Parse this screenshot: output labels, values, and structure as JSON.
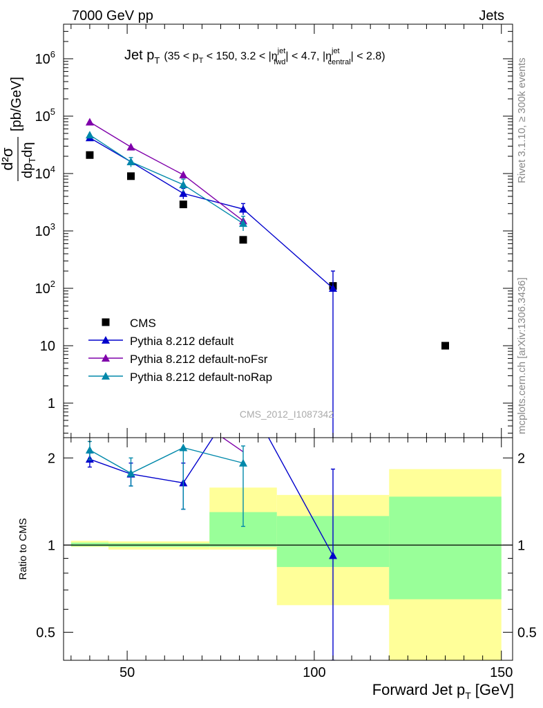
{
  "header": {
    "left": "7000 GeV pp",
    "right": "Jets"
  },
  "side_labels": {
    "rivet": "Rivet 3.1.10, ≥ 300k events",
    "mcplots": "mcplots.cern.ch [arXiv:1306.3436]"
  },
  "watermark": "CMS_2012_I1087342",
  "main_plot": {
    "title_main": "Jet p",
    "title_sub": "T",
    "title_cut": "(35 < p",
    "title_cut_sub": "T",
    "title_cut2": " < 150, 3.2 < |η",
    "title_eta_sup1": "jet",
    "title_eta_sub1": "fwd",
    "title_cut3": "| < 4.7, |η",
    "title_eta_sup2": "jet",
    "title_eta_sub2": "central",
    "title_cut4": "| < 2.8)",
    "ylabel_num": "d²σ",
    "ylabel_den": "dp",
    "ylabel_den_sub": "T",
    "ylabel_den2": "dη",
    "ylabel_unit": "[pb/GeV]"
  },
  "ratio_plot": {
    "ylabel": "Ratio to CMS"
  },
  "xaxis": {
    "label": "Forward Jet p",
    "label_sub": "T",
    "label_unit": "[GeV]"
  },
  "legend": [
    {
      "name": "CMS",
      "color": "#000000",
      "marker": "square"
    },
    {
      "name": "Pythia 8.212 default",
      "color": "#0000cc",
      "marker": "triangle"
    },
    {
      "name": "Pythia 8.212 default-noFsr",
      "color": "#7f00aa",
      "marker": "triangle"
    },
    {
      "name": "Pythia 8.212 default-noRap",
      "color": "#0088aa",
      "marker": "triangle"
    }
  ],
  "chart_data": [
    {
      "type": "scatter",
      "panel": "main",
      "xlim": [
        33,
        153
      ],
      "ylim": [
        0.25,
        4000000
      ],
      "log_y": true,
      "yticks": [
        {
          "value": 1,
          "label": "1"
        },
        {
          "value": 10,
          "label": "10"
        },
        {
          "value": 100,
          "label": "10",
          "exp": "2"
        },
        {
          "value": 1000,
          "label": "10",
          "exp": "3"
        },
        {
          "value": 10000,
          "label": "10",
          "exp": "4"
        },
        {
          "value": 100000,
          "label": "10",
          "exp": "5"
        },
        {
          "value": 1000000,
          "label": "10",
          "exp": "6"
        }
      ],
      "series": [
        {
          "name": "CMS",
          "color": "#000000",
          "marker": "square",
          "line": false,
          "x": [
            40,
            51,
            65,
            81,
            105,
            135
          ],
          "y": [
            21000,
            9000,
            2900,
            700,
            110,
            10
          ]
        },
        {
          "name": "Pythia 8.212 default",
          "color": "#0000cc",
          "marker": "triangle",
          "line": true,
          "x": [
            40,
            51,
            65,
            81,
            105
          ],
          "y": [
            42000,
            16000,
            4500,
            2400,
            100
          ],
          "err_low": [
            null,
            null,
            3600,
            1900,
            0.2
          ],
          "err_high": [
            null,
            null,
            5500,
            3000,
            200
          ]
        },
        {
          "name": "Pythia 8.212 default-noFsr",
          "color": "#7f00aa",
          "marker": "triangle",
          "line": true,
          "x": [
            40,
            51,
            65,
            81
          ],
          "y": [
            79000,
            29000,
            9500,
            1500
          ]
        },
        {
          "name": "Pythia 8.212 default-noRap",
          "color": "#0088aa",
          "marker": "triangle",
          "line": true,
          "x": [
            40,
            51,
            65,
            81
          ],
          "y": [
            47000,
            16000,
            6400,
            1350
          ],
          "err_low": [
            null,
            13000,
            4800,
            1000
          ],
          "err_high": [
            null,
            19000,
            8000,
            1800
          ]
        }
      ]
    },
    {
      "type": "line",
      "panel": "ratio",
      "xlim": [
        33,
        153
      ],
      "ylim": [
        0.4,
        2.35
      ],
      "log_y": true,
      "yticks": [
        {
          "value": 0.5,
          "label": "0.5"
        },
        {
          "value": 1,
          "label": "1"
        },
        {
          "value": 2,
          "label": "2"
        }
      ],
      "xticks": [
        {
          "value": 50,
          "label": "50"
        },
        {
          "value": 100,
          "label": "100"
        },
        {
          "value": 150,
          "label": "150"
        }
      ],
      "bands": {
        "yellow": [
          {
            "x0": 35,
            "x1": 45,
            "lo": 0.985,
            "hi": 1.035
          },
          {
            "x0": 45,
            "x1": 72,
            "lo": 0.965,
            "hi": 1.03
          },
          {
            "x0": 72,
            "x1": 90,
            "lo": 0.965,
            "hi": 1.58
          },
          {
            "x0": 90,
            "x1": 120,
            "lo": 0.62,
            "hi": 1.49
          },
          {
            "x0": 120,
            "x1": 150,
            "lo": 0.36,
            "hi": 1.83
          }
        ],
        "green": [
          {
            "x0": 35,
            "x1": 45,
            "lo": 0.99,
            "hi": 1.02
          },
          {
            "x0": 45,
            "x1": 72,
            "lo": 0.985,
            "hi": 1.015
          },
          {
            "x0": 72,
            "x1": 90,
            "lo": 0.985,
            "hi": 1.3
          },
          {
            "x0": 90,
            "x1": 120,
            "lo": 0.84,
            "hi": 1.26
          },
          {
            "x0": 120,
            "x1": 150,
            "lo": 0.65,
            "hi": 1.47
          }
        ]
      },
      "series": [
        {
          "name": "Pythia 8.212 default",
          "color": "#0000cc",
          "x": [
            40,
            51,
            65,
            81,
            105
          ],
          "y": [
            1.98,
            1.76,
            1.64,
            3.4,
            0.92
          ],
          "err_low": [
            1.86,
            1.6,
            1.33,
            null,
            0.001
          ],
          "err_high": [
            2.08,
            1.92,
            1.92,
            null,
            1.83
          ]
        },
        {
          "name": "Pythia 8.212 default-noFsr",
          "color": "#7f00aa",
          "x": [
            73.5,
            81
          ],
          "y": [
            2.45,
            2.1
          ]
        },
        {
          "name": "Pythia 8.212 default-noRap",
          "color": "#0088aa",
          "x": [
            40,
            51,
            65,
            81
          ],
          "y": [
            2.13,
            1.77,
            2.17,
            1.92
          ],
          "err_low": [
            1.97,
            1.6,
            1.33,
            1.16
          ],
          "err_high": [
            2.28,
            2.0,
            2.17,
            2.2
          ]
        }
      ]
    }
  ]
}
